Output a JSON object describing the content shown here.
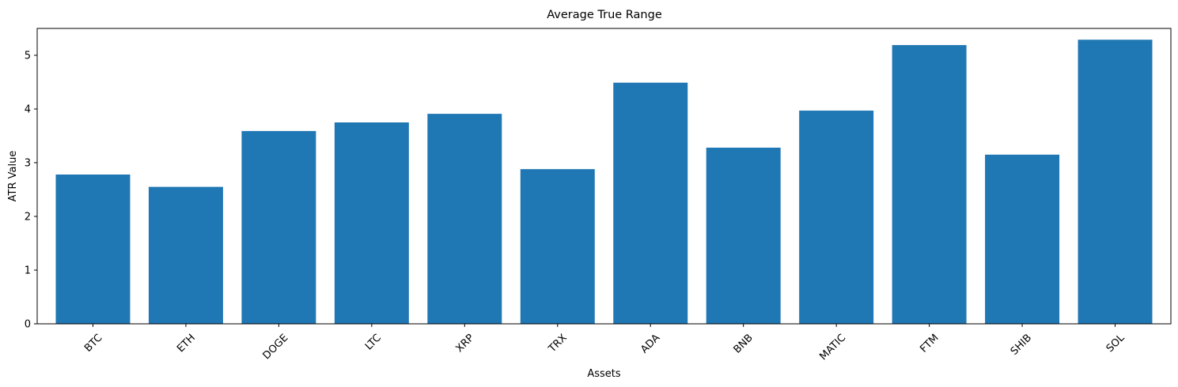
{
  "chart_data": {
    "type": "bar",
    "title": "Average True Range",
    "xlabel": "Assets",
    "ylabel": "ATR Value",
    "categories": [
      "BTC",
      "ETH",
      "DOGE",
      "LTC",
      "XRP",
      "TRX",
      "ADA",
      "BNB",
      "MATIC",
      "FTM",
      "SHIB",
      "SOL"
    ],
    "values": [
      2.78,
      2.55,
      3.59,
      3.75,
      3.91,
      2.88,
      4.49,
      3.28,
      3.97,
      5.19,
      3.15,
      5.29
    ],
    "ylim": [
      0,
      5.5
    ],
    "yticks": [
      0,
      1,
      2,
      3,
      4,
      5
    ],
    "grid": false,
    "bar_color": "#1f77b4",
    "x_tick_rotation": -45
  }
}
